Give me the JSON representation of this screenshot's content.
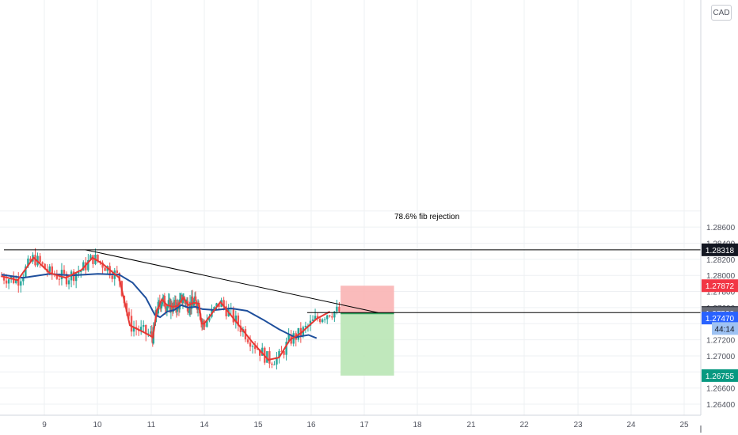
{
  "currency": "CAD",
  "colors": {
    "grid": "#eef0f3",
    "up_candle": "#26a69a",
    "down_candle": "#ef5350",
    "ma_fast": "#e53935",
    "ma_slow": "#1e4f9c",
    "line": "#000000",
    "stop_zone": "#f9b4b4",
    "target_zone": "#b9e5b5",
    "axis_text": "#50535e"
  },
  "chart_data": {
    "type": "candlestick",
    "title": "",
    "xlabel": "",
    "ylabel": "",
    "grid": true,
    "x_ticks": [
      "9",
      "10",
      "11",
      "14",
      "15",
      "16",
      "17",
      "18",
      "21",
      "22",
      "23",
      "24",
      "25"
    ],
    "y_ticks": [
      "1.28600",
      "1.28400",
      "1.28200",
      "1.28000",
      "1.27800",
      "1.27600",
      "1.27200",
      "1.27000",
      "1.26800",
      "1.26600",
      "1.26400"
    ],
    "ylim": [
      1.26362,
      1.28972
    ],
    "price_labels": [
      {
        "value": 1.28318,
        "label": "1.28318",
        "style": "black"
      },
      {
        "value": 1.27872,
        "label": "1.27872",
        "style": "red"
      },
      {
        "value": 1.27538,
        "label": "1.27538",
        "style": "black"
      },
      {
        "value": 1.27528,
        "label": "1.27528",
        "style": "gray"
      },
      {
        "value": 1.2747,
        "label": "1.27470",
        "style": "blue"
      },
      {
        "value": 1.2734,
        "label": "44:14",
        "style": "lightblue"
      },
      {
        "value": 1.26755,
        "label": "1.26755",
        "style": "green"
      }
    ],
    "annotation": "78.6% fib rejection",
    "horizontal_lines": [
      1.28318,
      1.27538
    ],
    "trendline": [
      {
        "x": 9.77,
        "y": 1.28318
      },
      {
        "x": 17.25,
        "y": 1.27538
      }
    ],
    "position": {
      "x_start": 16.55,
      "x_end": 17.55,
      "entry": 1.27528,
      "stop": 1.27872,
      "target": 1.26755
    },
    "series": [
      {
        "name": "",
        "values": [
          [
            8.2,
            1.2799
          ],
          [
            8.5,
            1.2794
          ],
          [
            8.8,
            1.2822
          ],
          [
            9.1,
            1.2803
          ],
          [
            9.4,
            1.2797
          ],
          [
            9.7,
            1.2807
          ],
          [
            9.9,
            1.2822
          ],
          [
            10.1,
            1.2814
          ],
          [
            10.4,
            1.2797
          ],
          [
            10.6,
            1.2738
          ],
          [
            10.9,
            1.2728
          ],
          [
            11.1,
            1.2723
          ],
          [
            11.3,
            1.2755
          ],
          [
            11.6,
            1.277
          ],
          [
            11.9,
            1.2763
          ],
          [
            12.2,
            1.2761
          ],
          [
            12.5,
            1.2762
          ],
          [
            12.8,
            1.2772
          ],
          [
            13.1,
            1.2763
          ],
          [
            13.4,
            1.2766
          ],
          [
            13.7,
            1.2765
          ],
          [
            13.85,
            1.274
          ],
          [
            14.0,
            1.274
          ],
          [
            14.3,
            1.2767
          ],
          [
            14.6,
            1.2742
          ],
          [
            14.9,
            1.2717
          ],
          [
            15.2,
            1.2695
          ],
          [
            15.4,
            1.2698
          ],
          [
            15.6,
            1.272
          ],
          [
            15.8,
            1.2728
          ],
          [
            16.1,
            1.2746
          ],
          [
            16.35,
            1.2755
          ]
        ]
      },
      {
        "name": "",
        "values": [
          [
            8.2,
            1.2801
          ],
          [
            8.6,
            1.2797
          ],
          [
            9.1,
            1.2802
          ],
          [
            9.5,
            1.28
          ],
          [
            10.0,
            1.2802
          ],
          [
            10.4,
            1.2801
          ],
          [
            10.65,
            1.2791
          ],
          [
            10.9,
            1.2772
          ],
          [
            11.2,
            1.2751
          ],
          [
            11.5,
            1.2748
          ],
          [
            11.9,
            1.2755
          ],
          [
            12.3,
            1.2757
          ],
          [
            12.7,
            1.2763
          ],
          [
            13.1,
            1.276
          ],
          [
            13.5,
            1.2761
          ],
          [
            13.9,
            1.2758
          ],
          [
            14.2,
            1.2757
          ],
          [
            14.5,
            1.2759
          ],
          [
            14.8,
            1.2756
          ],
          [
            15.1,
            1.2745
          ],
          [
            15.4,
            1.2733
          ],
          [
            15.7,
            1.2723
          ],
          [
            15.95,
            1.2726
          ],
          [
            16.1,
            1.2722
          ]
        ]
      }
    ]
  }
}
